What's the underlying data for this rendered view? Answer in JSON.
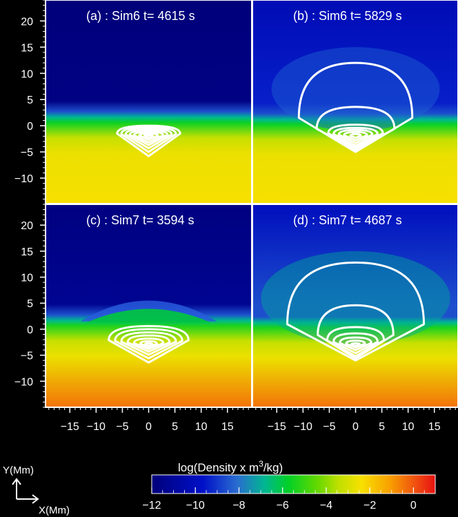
{
  "chart_data": [
    {
      "type": "heatmap",
      "title": "(a) : Sim6 t= 4615 s",
      "sim": "Sim6",
      "time_s": 4615,
      "xlim": [
        -19.5,
        19.5
      ],
      "ylim": [
        -15,
        24
      ],
      "density_profile": {
        "corona": [
          -12,
          -11.7
        ],
        "transition_y": 1.2,
        "chromosphere": -5.6,
        "photosphere_bottom": -2.4
      },
      "contours": [
        {
          "cx": 0,
          "cy": -2,
          "half_width": 6.0,
          "top": 0.0,
          "bottom": -5.8
        },
        {
          "cx": 0,
          "cy": -2,
          "half_width": 5.2,
          "top": -0.3,
          "bottom": -5.0
        },
        {
          "cx": 0,
          "cy": -2,
          "half_width": 4.4,
          "top": -0.6,
          "bottom": -4.3
        },
        {
          "cx": 0,
          "cy": -2,
          "half_width": 3.6,
          "top": -0.9,
          "bottom": -3.7
        },
        {
          "cx": 0,
          "cy": -2,
          "half_width": 2.8,
          "top": -1.2,
          "bottom": -3.2
        },
        {
          "cx": 0,
          "cy": -2,
          "half_width": 1.8,
          "top": -1.5,
          "bottom": -2.7
        },
        {
          "cx": 0,
          "cy": -2,
          "half_width": 0.8,
          "top": -1.8,
          "bottom": -2.3
        }
      ]
    },
    {
      "type": "heatmap",
      "title": "(b) : Sim6 t= 5829 s",
      "sim": "Sim6",
      "time_s": 5829,
      "xlim": [
        -19.5,
        19.5
      ],
      "ylim": [
        -15,
        24
      ],
      "density_profile": {
        "corona": [
          -10.2,
          -9.4
        ],
        "transition_y": 0.8,
        "chromosphere": -5.6,
        "photosphere_bottom": -2.4
      },
      "contours": [
        {
          "cx": 0,
          "cy": -2,
          "half_width": 10.8,
          "top": 12.0,
          "bottom": -5.0
        },
        {
          "cx": 0,
          "cy": -2,
          "half_width": 7.4,
          "top": 3.6,
          "bottom": -4.6
        },
        {
          "cx": 0,
          "cy": -2,
          "half_width": 5.2,
          "top": 0.2,
          "bottom": -4.2
        },
        {
          "cx": 0,
          "cy": -2,
          "half_width": 4.2,
          "top": -0.4,
          "bottom": -3.8
        },
        {
          "cx": 0,
          "cy": -2,
          "half_width": 3.2,
          "top": -0.8,
          "bottom": -3.3
        },
        {
          "cx": 0,
          "cy": -2,
          "half_width": 2.2,
          "top": -1.2,
          "bottom": -2.8
        },
        {
          "cx": 0,
          "cy": -2,
          "half_width": 1.0,
          "top": -1.6,
          "bottom": -2.3
        }
      ]
    },
    {
      "type": "heatmap",
      "title": "(c) : Sim7 t= 3594 s",
      "sim": "Sim7",
      "time_s": 3594,
      "xlim": [
        -19.5,
        19.5
      ],
      "ylim": [
        -15,
        24
      ],
      "density_profile": {
        "corona": [
          -11.8,
          -11.3
        ],
        "transition_y": 1.3,
        "chromosphere": -5.4,
        "photosphere_bottom": -0.4
      },
      "contours": [
        {
          "cx": 0,
          "cy": -3,
          "half_width": 7.6,
          "top": 0.6,
          "bottom": -6.4
        },
        {
          "cx": 0,
          "cy": -3,
          "half_width": 6.4,
          "top": 0.0,
          "bottom": -5.6
        },
        {
          "cx": 0,
          "cy": -3,
          "half_width": 5.2,
          "top": -0.6,
          "bottom": -4.9
        },
        {
          "cx": 0,
          "cy": -3,
          "half_width": 4.0,
          "top": -1.2,
          "bottom": -4.3
        },
        {
          "cx": 0,
          "cy": -3,
          "half_width": 2.8,
          "top": -1.8,
          "bottom": -3.8
        },
        {
          "cx": 0,
          "cy": -3,
          "half_width": 1.6,
          "top": -2.3,
          "bottom": -3.4
        },
        {
          "cx": 0,
          "cy": -3,
          "half_width": 0.7,
          "top": -2.7,
          "bottom": -3.2
        }
      ]
    },
    {
      "type": "heatmap",
      "title": "(d) : Sim7 t= 4687 s",
      "sim": "Sim7",
      "time_s": 4687,
      "xlim": [
        -19.5,
        19.5
      ],
      "ylim": [
        -15,
        24
      ],
      "density_profile": {
        "corona": [
          -10.0,
          -8.6
        ],
        "transition_y": 0.9,
        "chromosphere": -5.4,
        "photosphere_bottom": -0.4
      },
      "contours": [
        {
          "cx": 0,
          "cy": -3,
          "half_width": 13.0,
          "top": 12.8,
          "bottom": -6.0
        },
        {
          "cx": 0,
          "cy": -3,
          "half_width": 7.2,
          "top": 4.6,
          "bottom": -5.6
        },
        {
          "cx": 0,
          "cy": -3,
          "half_width": 5.4,
          "top": 0.4,
          "bottom": -5.2
        },
        {
          "cx": 0,
          "cy": -3,
          "half_width": 4.2,
          "top": -0.8,
          "bottom": -4.6
        },
        {
          "cx": 0,
          "cy": -3,
          "half_width": 3.0,
          "top": -1.6,
          "bottom": -4.0
        },
        {
          "cx": 0,
          "cy": -3,
          "half_width": 1.8,
          "top": -2.2,
          "bottom": -3.5
        },
        {
          "cx": 0,
          "cy": -3,
          "half_width": 0.8,
          "top": -2.7,
          "bottom": -3.2
        }
      ]
    }
  ],
  "axes": {
    "x_ticks": [
      -15,
      -10,
      -5,
      0,
      5,
      10,
      15
    ],
    "y_ticks": [
      20,
      15,
      10,
      5,
      0,
      -5,
      -10
    ]
  },
  "colorbar": {
    "label": "log(Density x m",
    "label_sup": "3",
    "label_tail": "/kg)",
    "range": [
      -12,
      1
    ],
    "ticks": [
      -12,
      -10,
      -8,
      -6,
      -4,
      -2,
      0
    ]
  },
  "orientation": {
    "y_label": "Y(Mm)",
    "x_label": "X(Mm)"
  }
}
